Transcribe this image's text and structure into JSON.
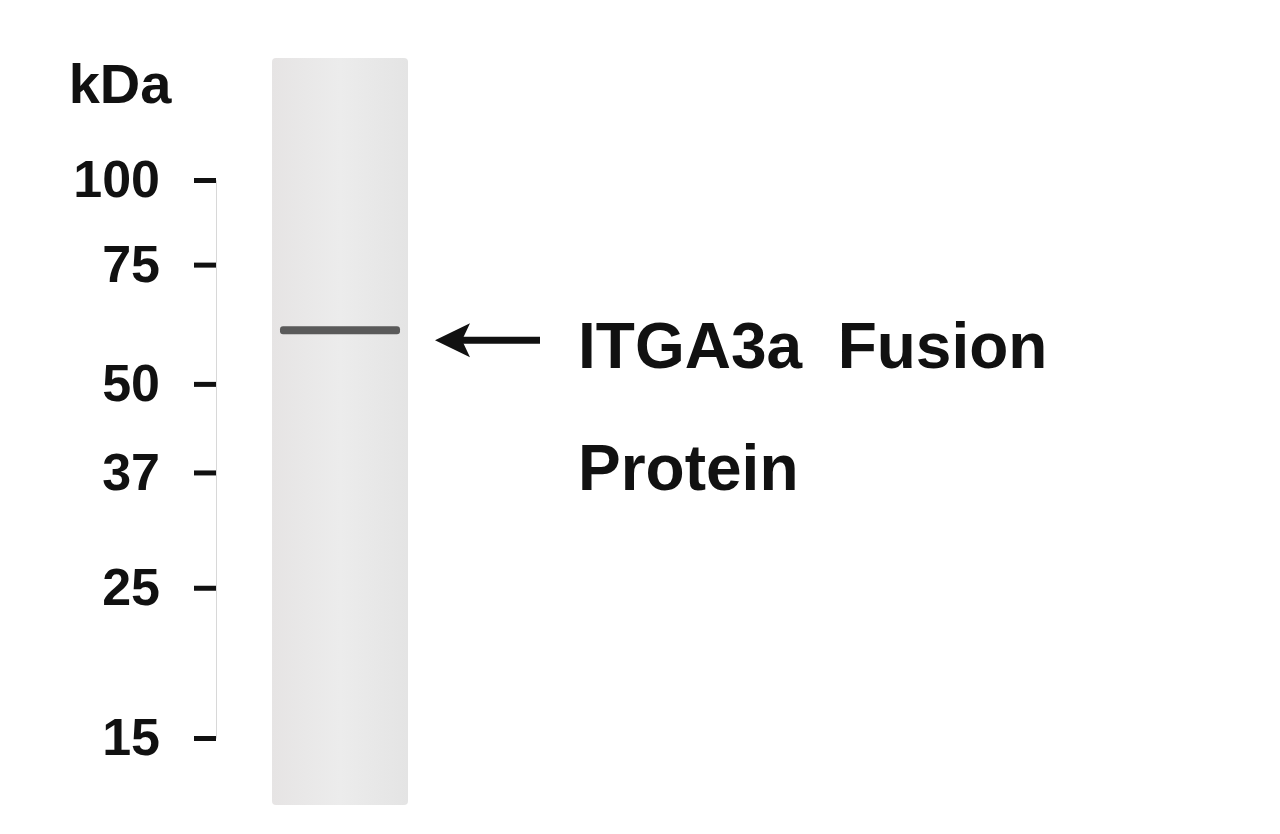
{
  "chart_data": {
    "type": "blot",
    "y_label": "kDa",
    "categories": [
      null
    ],
    "values": [
      60
    ],
    "log": "y",
    "ylim": [
      15,
      100
    ],
    "yticks": [
      100,
      75,
      50,
      37,
      25,
      15
    ],
    "annotation": "ITGA3a  Fusion Protein",
    "color": "#5a5a5a"
  }
}
